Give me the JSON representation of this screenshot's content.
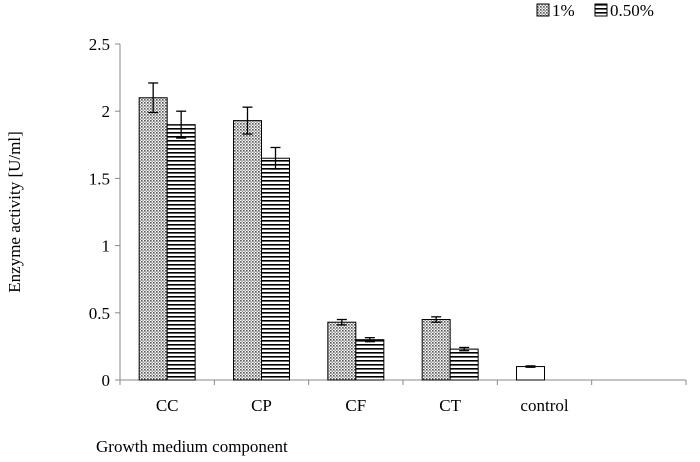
{
  "chart_data": {
    "type": "bar",
    "title": "",
    "xlabel": "Growth medium component",
    "ylabel": "Enzyme activity [U/ml]",
    "ylim": [
      0,
      2.5
    ],
    "yticks": [
      "0",
      "0.5",
      "1",
      "1.5",
      "2",
      "2.5"
    ],
    "categories": [
      "CC",
      "CP",
      "CF",
      "CT",
      "control"
    ],
    "grid": false,
    "legend_position": "top-right",
    "series": [
      {
        "name": "1%",
        "pattern": "dotted",
        "values": [
          2.1,
          1.93,
          0.43,
          0.45,
          null
        ],
        "errors": [
          0.11,
          0.1,
          0.02,
          0.02,
          null
        ]
      },
      {
        "name": "0.50%",
        "pattern": "horizontal-stripes",
        "values": [
          1.9,
          1.65,
          0.3,
          0.23,
          null
        ],
        "errors": [
          0.1,
          0.08,
          0.015,
          0.012,
          null
        ]
      }
    ],
    "control": {
      "value": 0.1,
      "error": 0.005
    }
  }
}
